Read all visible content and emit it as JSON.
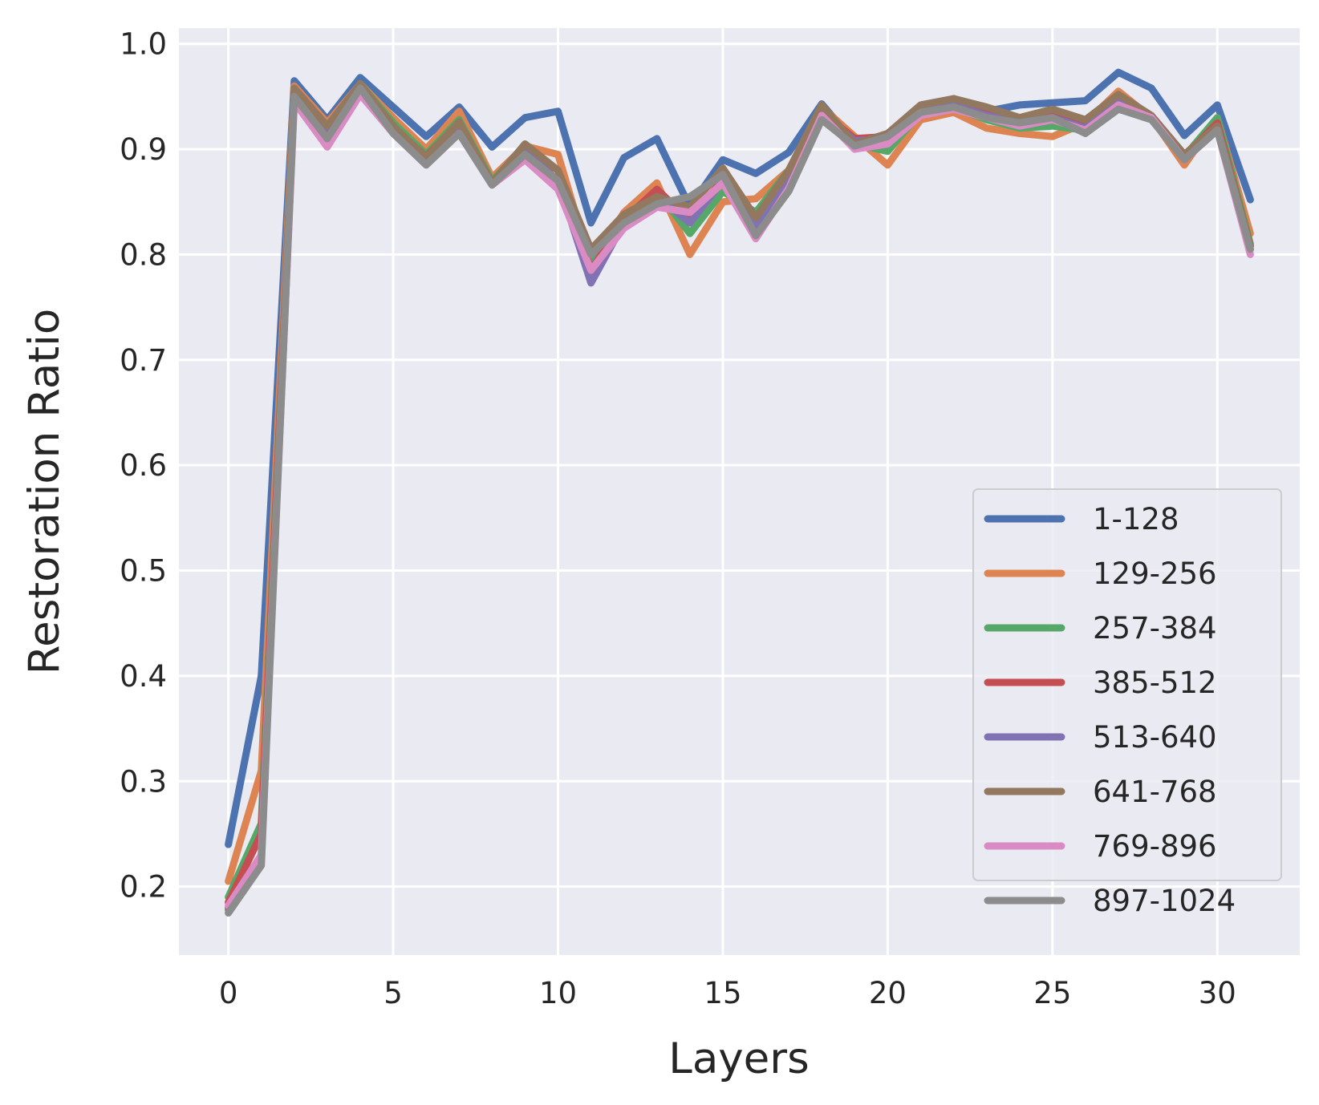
{
  "chart_data": {
    "type": "line",
    "xlabel": "Layers",
    "ylabel": "Restoration Ratio",
    "xlim": [
      -1.5,
      32.5
    ],
    "ylim": [
      0.135,
      1.015
    ],
    "xticks": [
      0,
      5,
      10,
      15,
      20,
      25,
      30
    ],
    "yticks": [
      0.2,
      0.3,
      0.4,
      0.5,
      0.6,
      0.7,
      0.8,
      0.9,
      1.0
    ],
    "ytick_labels": [
      "0.2",
      "0.3",
      "0.4",
      "0.5",
      "0.6",
      "0.7",
      "0.8",
      "0.9",
      "1.0"
    ],
    "grid": true,
    "legend_position": "lower-right",
    "x": [
      0,
      1,
      2,
      3,
      4,
      5,
      6,
      7,
      8,
      9,
      10,
      11,
      12,
      13,
      14,
      15,
      16,
      17,
      18,
      19,
      20,
      21,
      22,
      23,
      24,
      25,
      26,
      27,
      28,
      29,
      30,
      31
    ],
    "series": [
      {
        "name": "1-128",
        "color": "#4c72b0",
        "values": [
          0.24,
          0.4,
          0.965,
          0.928,
          0.968,
          0.94,
          0.912,
          0.94,
          0.902,
          0.93,
          0.936,
          0.83,
          0.892,
          0.91,
          0.845,
          0.89,
          0.877,
          0.897,
          0.943,
          0.906,
          0.91,
          0.938,
          0.948,
          0.936,
          0.942,
          0.944,
          0.946,
          0.973,
          0.958,
          0.913,
          0.942,
          0.852
        ]
      },
      {
        "name": "129-256",
        "color": "#dd8452",
        "values": [
          0.205,
          0.31,
          0.96,
          0.925,
          0.962,
          0.93,
          0.9,
          0.936,
          0.873,
          0.903,
          0.895,
          0.79,
          0.84,
          0.868,
          0.8,
          0.85,
          0.853,
          0.88,
          0.94,
          0.912,
          0.885,
          0.928,
          0.935,
          0.92,
          0.915,
          0.912,
          0.925,
          0.955,
          0.93,
          0.885,
          0.93,
          0.82
        ]
      },
      {
        "name": "257-384",
        "color": "#55a868",
        "values": [
          0.19,
          0.26,
          0.955,
          0.92,
          0.962,
          0.925,
          0.895,
          0.928,
          0.87,
          0.902,
          0.88,
          0.79,
          0.835,
          0.86,
          0.82,
          0.86,
          0.84,
          0.88,
          0.94,
          0.905,
          0.898,
          0.935,
          0.94,
          0.928,
          0.92,
          0.922,
          0.918,
          0.945,
          0.93,
          0.893,
          0.93,
          0.81
        ]
      },
      {
        "name": "385-512",
        "color": "#c44e52",
        "values": [
          0.185,
          0.25,
          0.955,
          0.918,
          0.96,
          0.92,
          0.893,
          0.925,
          0.868,
          0.9,
          0.88,
          0.785,
          0.833,
          0.862,
          0.832,
          0.872,
          0.83,
          0.875,
          0.935,
          0.91,
          0.912,
          0.938,
          0.945,
          0.935,
          0.928,
          0.935,
          0.924,
          0.948,
          0.93,
          0.893,
          0.925,
          0.808
        ]
      },
      {
        "name": "513-640",
        "color": "#8172b3",
        "values": [
          0.18,
          0.23,
          0.95,
          0.915,
          0.958,
          0.918,
          0.89,
          0.922,
          0.866,
          0.898,
          0.87,
          0.773,
          0.83,
          0.855,
          0.83,
          0.87,
          0.825,
          0.872,
          0.935,
          0.908,
          0.91,
          0.936,
          0.942,
          0.932,
          0.925,
          0.93,
          0.92,
          0.945,
          0.93,
          0.892,
          0.922,
          0.805
        ]
      },
      {
        "name": "641-768",
        "color": "#937860",
        "values": [
          0.178,
          0.225,
          0.958,
          0.922,
          0.962,
          0.922,
          0.892,
          0.926,
          0.868,
          0.905,
          0.88,
          0.805,
          0.838,
          0.855,
          0.845,
          0.882,
          0.835,
          0.88,
          0.942,
          0.905,
          0.915,
          0.942,
          0.948,
          0.94,
          0.93,
          0.938,
          0.928,
          0.952,
          0.932,
          0.895,
          0.922,
          0.808
        ]
      },
      {
        "name": "769-896",
        "color": "#da8bc3",
        "values": [
          0.182,
          0.23,
          0.945,
          0.902,
          0.952,
          0.915,
          0.885,
          0.915,
          0.866,
          0.89,
          0.862,
          0.785,
          0.825,
          0.845,
          0.84,
          0.868,
          0.815,
          0.863,
          0.932,
          0.9,
          0.905,
          0.932,
          0.938,
          0.93,
          0.922,
          0.928,
          0.918,
          0.942,
          0.93,
          0.89,
          0.918,
          0.8
        ]
      },
      {
        "name": "897-1024",
        "color": "#8c8c8c",
        "values": [
          0.175,
          0.22,
          0.95,
          0.91,
          0.958,
          0.915,
          0.885,
          0.915,
          0.866,
          0.895,
          0.87,
          0.8,
          0.83,
          0.848,
          0.855,
          0.876,
          0.818,
          0.86,
          0.928,
          0.903,
          0.912,
          0.935,
          0.94,
          0.93,
          0.925,
          0.93,
          0.915,
          0.938,
          0.928,
          0.89,
          0.918,
          0.805
        ]
      }
    ]
  }
}
